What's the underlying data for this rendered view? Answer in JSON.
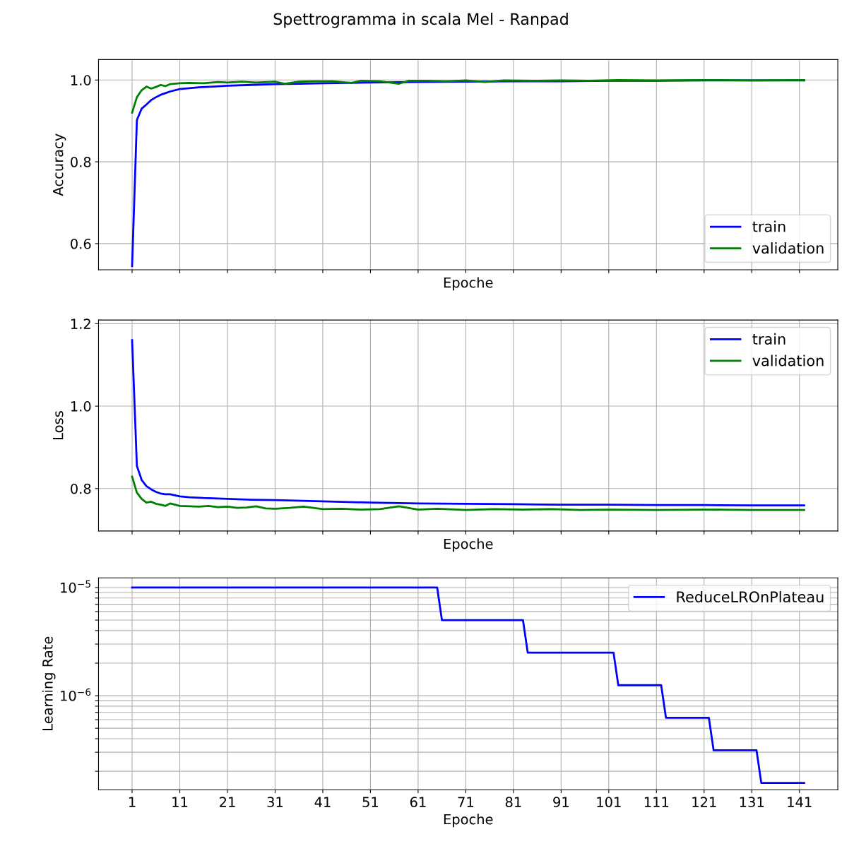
{
  "chart_data": [
    {
      "type": "line",
      "title": "Spettrogramma in scala Mel - Ranpad",
      "xlabel": "Epoche",
      "ylabel": "Accuracy",
      "xlim": [
        -6.05,
        149.05
      ],
      "xticks": [
        1,
        11,
        21,
        31,
        41,
        51,
        61,
        71,
        81,
        91,
        101,
        111,
        121,
        131,
        141
      ],
      "ylim": [
        0.536,
        1.05
      ],
      "yticks": [
        0.6,
        0.8,
        {
          "value": 1,
          "label": "1.0"
        }
      ],
      "tick_labels": "y",
      "grid": true,
      "legend": "bottom right",
      "series": [
        {
          "name": "train",
          "color": "#0000ff",
          "x": [
            1,
            2,
            3,
            4,
            5,
            6,
            7,
            8,
            9,
            11,
            13,
            15,
            18,
            21,
            26,
            31,
            36,
            41,
            51,
            61,
            71,
            81,
            91,
            101,
            111,
            121,
            131,
            142
          ],
          "values": [
            0.545,
            0.902,
            0.93,
            0.94,
            0.951,
            0.958,
            0.964,
            0.968,
            0.972,
            0.978,
            0.98,
            0.982,
            0.984,
            0.986,
            0.988,
            0.99,
            0.991,
            0.992,
            0.994,
            0.995,
            0.996,
            0.997,
            0.997,
            0.998,
            0.998,
            0.999,
            0.999,
            0.999
          ]
        },
        {
          "name": "validation",
          "color": "#008000",
          "x": [
            1,
            2,
            3,
            4,
            5,
            6,
            7,
            8,
            9,
            11,
            13,
            16,
            19,
            21,
            24,
            27,
            31,
            33,
            36,
            39,
            43,
            47,
            49,
            53,
            57,
            59,
            63,
            67,
            71,
            75,
            79,
            85,
            91,
            97,
            103,
            111,
            121,
            131,
            142
          ],
          "values": [
            0.92,
            0.958,
            0.975,
            0.984,
            0.979,
            0.983,
            0.988,
            0.985,
            0.99,
            0.992,
            0.993,
            0.992,
            0.995,
            0.994,
            0.996,
            0.994,
            0.996,
            0.991,
            0.996,
            0.997,
            0.997,
            0.993,
            0.998,
            0.997,
            0.991,
            0.998,
            0.998,
            0.997,
            0.999,
            0.995,
            0.999,
            0.998,
            0.999,
            0.998,
            1.0,
            0.999,
            1.0,
            0.999,
            1.0
          ]
        }
      ]
    },
    {
      "type": "line",
      "xlabel": "Epoche",
      "ylabel": "Loss",
      "xlim": [
        -6.05,
        149.05
      ],
      "xticks": [
        1,
        11,
        21,
        31,
        41,
        51,
        61,
        71,
        81,
        91,
        101,
        111,
        121,
        131,
        141
      ],
      "ylim": [
        0.697,
        1.209
      ],
      "yticks": [
        0.8,
        {
          "value": 1,
          "label": "1.0"
        },
        1.2
      ],
      "tick_labels": "y",
      "grid": true,
      "legend": "top right",
      "series": [
        {
          "name": "train",
          "color": "#0000ff",
          "x": [
            1,
            2,
            3,
            4,
            5,
            6,
            7,
            8,
            9,
            11,
            13,
            16,
            21,
            26,
            31,
            41,
            51,
            61,
            71,
            81,
            91,
            101,
            111,
            121,
            131,
            142
          ],
          "values": [
            1.16,
            0.855,
            0.821,
            0.806,
            0.798,
            0.792,
            0.788,
            0.786,
            0.786,
            0.781,
            0.779,
            0.777,
            0.775,
            0.773,
            0.772,
            0.769,
            0.766,
            0.764,
            0.763,
            0.762,
            0.761,
            0.761,
            0.76,
            0.76,
            0.759,
            0.759
          ]
        },
        {
          "name": "validation",
          "color": "#008000",
          "x": [
            1,
            2,
            3,
            4,
            5,
            6,
            7,
            8,
            9,
            11,
            13,
            15,
            17,
            19,
            21,
            23,
            25,
            27,
            29,
            31,
            34,
            37,
            41,
            45,
            49,
            53,
            57,
            61,
            65,
            71,
            77,
            83,
            89,
            95,
            101,
            111,
            121,
            131,
            142
          ],
          "values": [
            0.829,
            0.79,
            0.775,
            0.766,
            0.768,
            0.763,
            0.761,
            0.758,
            0.764,
            0.758,
            0.757,
            0.756,
            0.758,
            0.755,
            0.756,
            0.753,
            0.754,
            0.757,
            0.752,
            0.751,
            0.753,
            0.756,
            0.75,
            0.751,
            0.749,
            0.75,
            0.757,
            0.749,
            0.751,
            0.748,
            0.75,
            0.749,
            0.75,
            0.748,
            0.749,
            0.748,
            0.749,
            0.748,
            0.748
          ]
        }
      ]
    },
    {
      "type": "line",
      "xlabel": "Epoche",
      "ylabel": "Learning Rate",
      "log": "y",
      "xlim": [
        -6.05,
        149.05
      ],
      "xticks": [
        1,
        11,
        21,
        31,
        41,
        51,
        61,
        71,
        81,
        91,
        101,
        111,
        121,
        131,
        141
      ],
      "ylim": [
        1.35e-07,
        1.23e-05
      ],
      "yticks": [
        {
          "value": 2e-07,
          "label": null
        },
        {
          "value": 3e-07,
          "label": null
        },
        {
          "value": 4e-07,
          "label": null
        },
        {
          "value": 5e-07,
          "label": null
        },
        {
          "value": 6e-07,
          "label": null
        },
        {
          "value": 7e-07,
          "label": null
        },
        {
          "value": 8e-07,
          "label": null
        },
        {
          "value": 9e-07,
          "label": null
        },
        {
          "value": 1e-06,
          "label": "10$^{−6}$"
        },
        {
          "value": 2e-06,
          "label": null
        },
        {
          "value": 3e-06,
          "label": null
        },
        {
          "value": 4e-06,
          "label": null
        },
        {
          "value": 5e-06,
          "label": null
        },
        {
          "value": 6e-06,
          "label": null
        },
        {
          "value": 7e-06,
          "label": null
        },
        {
          "value": 8e-06,
          "label": null
        },
        {
          "value": 9e-06,
          "label": null
        },
        {
          "value": 1e-05,
          "label": "10$^{−5}$"
        }
      ],
      "grid": true,
      "legend": "top right",
      "series": [
        {
          "name": "ReduceLROnPlateau",
          "color": "#0000ff",
          "x": [
            1,
            65,
            66,
            83,
            84,
            102,
            103,
            112,
            113,
            122,
            123,
            132,
            133,
            142
          ],
          "values": [
            1e-05,
            1e-05,
            5e-06,
            5e-06,
            2.5e-06,
            2.5e-06,
            1.25e-06,
            1.25e-06,
            6.25e-07,
            6.25e-07,
            3.125e-07,
            3.125e-07,
            1.5625e-07,
            1.5625e-07
          ]
        }
      ]
    }
  ]
}
